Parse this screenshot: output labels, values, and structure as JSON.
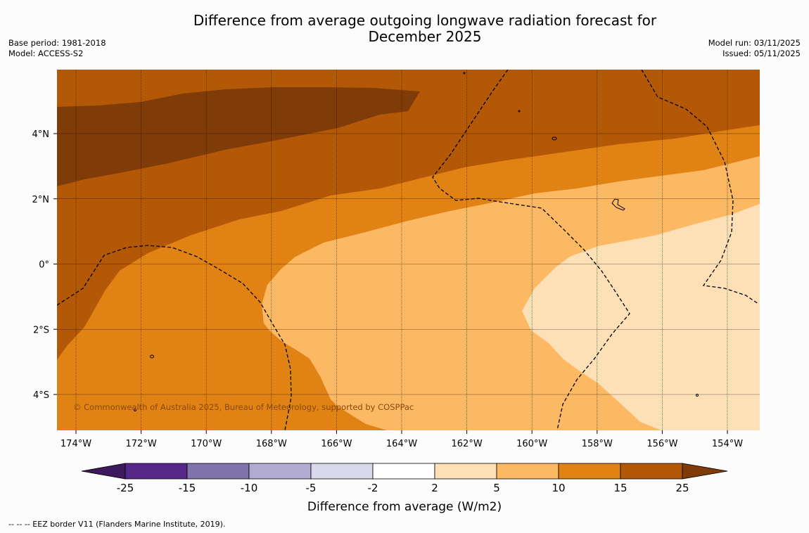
{
  "title": {
    "line1": "Difference from average outgoing longwave radiation forecast for",
    "line2": "December 2025"
  },
  "meta_left": {
    "base_period": "Base period: 1981-2018",
    "model": "Model: ACCESS-S2"
  },
  "meta_right": {
    "model_run": "Model run: 03/11/2025",
    "issued": "Issued: 05/11/2025"
  },
  "map": {
    "copyright": "© Commonwealth of Australia 2025, Bureau of Meteorology, supported by COSPPac",
    "lon_labels": [
      "174°W",
      "172°W",
      "170°W",
      "168°W",
      "166°W",
      "164°W",
      "162°W",
      "160°W",
      "158°W",
      "156°W",
      "154°W"
    ],
    "lat_labels": [
      "4°N",
      "2°N",
      "0°",
      "2°S",
      "4°S"
    ]
  },
  "colorbar": {
    "title": "Difference from average (W/m2)",
    "ticks": [
      "-25",
      "-15",
      "-10",
      "-5",
      "-2",
      "2",
      "5",
      "10",
      "15",
      "25"
    ],
    "colors": [
      "#3d1a5e",
      "#542788",
      "#8073ac",
      "#b2abd2",
      "#d8daeb",
      "#ffffff",
      "#fee0b6",
      "#fdb863",
      "#e08214",
      "#b35806",
      "#7f3b08"
    ]
  },
  "footnote": "--  --  -- EEZ border V11 (Flanders Marine Institute, 2019)."
}
